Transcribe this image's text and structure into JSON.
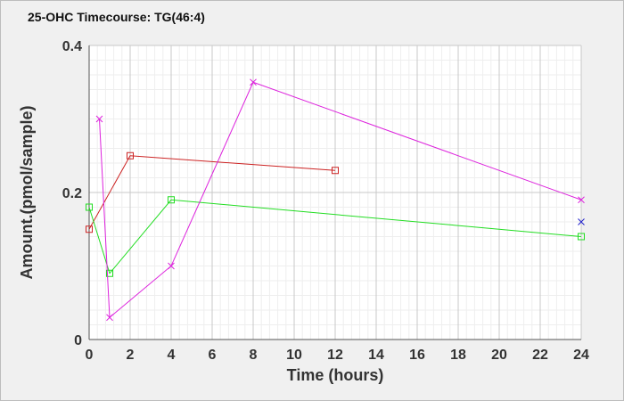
{
  "chart_data": {
    "type": "line",
    "title": "25-OHC Timecourse: TG(46:4)",
    "xlabel": "Time (hours)",
    "ylabel": "Amount.(pmol/sample)",
    "xlim": [
      0,
      24
    ],
    "ylim": [
      0,
      0.4
    ],
    "xticks": [
      "0",
      "2",
      "4",
      "6",
      "8",
      "10",
      "12",
      "14",
      "16",
      "18",
      "20",
      "22",
      "24"
    ],
    "yticks": [
      "0",
      "0.2",
      "0.4"
    ],
    "grid": true,
    "legend": "none",
    "series": [
      {
        "color": "#cc2222",
        "marker": "square",
        "points": [
          [
            0,
            0.15
          ],
          [
            2,
            0.25
          ],
          [
            12,
            0.23
          ]
        ]
      },
      {
        "color": "#22dd22",
        "marker": "square",
        "points": [
          [
            0,
            0.18
          ],
          [
            1,
            0.09
          ],
          [
            4,
            0.19
          ],
          [
            24,
            0.14
          ]
        ]
      },
      {
        "color": "#dd22dd",
        "marker": "x",
        "points": [
          [
            0.5,
            0.3
          ],
          [
            1,
            0.03
          ],
          [
            4,
            0.1
          ],
          [
            8,
            0.35
          ],
          [
            24,
            0.19
          ]
        ]
      },
      {
        "color": "#2222cc",
        "marker": "x",
        "points": [
          [
            24,
            0.16
          ]
        ]
      }
    ]
  }
}
